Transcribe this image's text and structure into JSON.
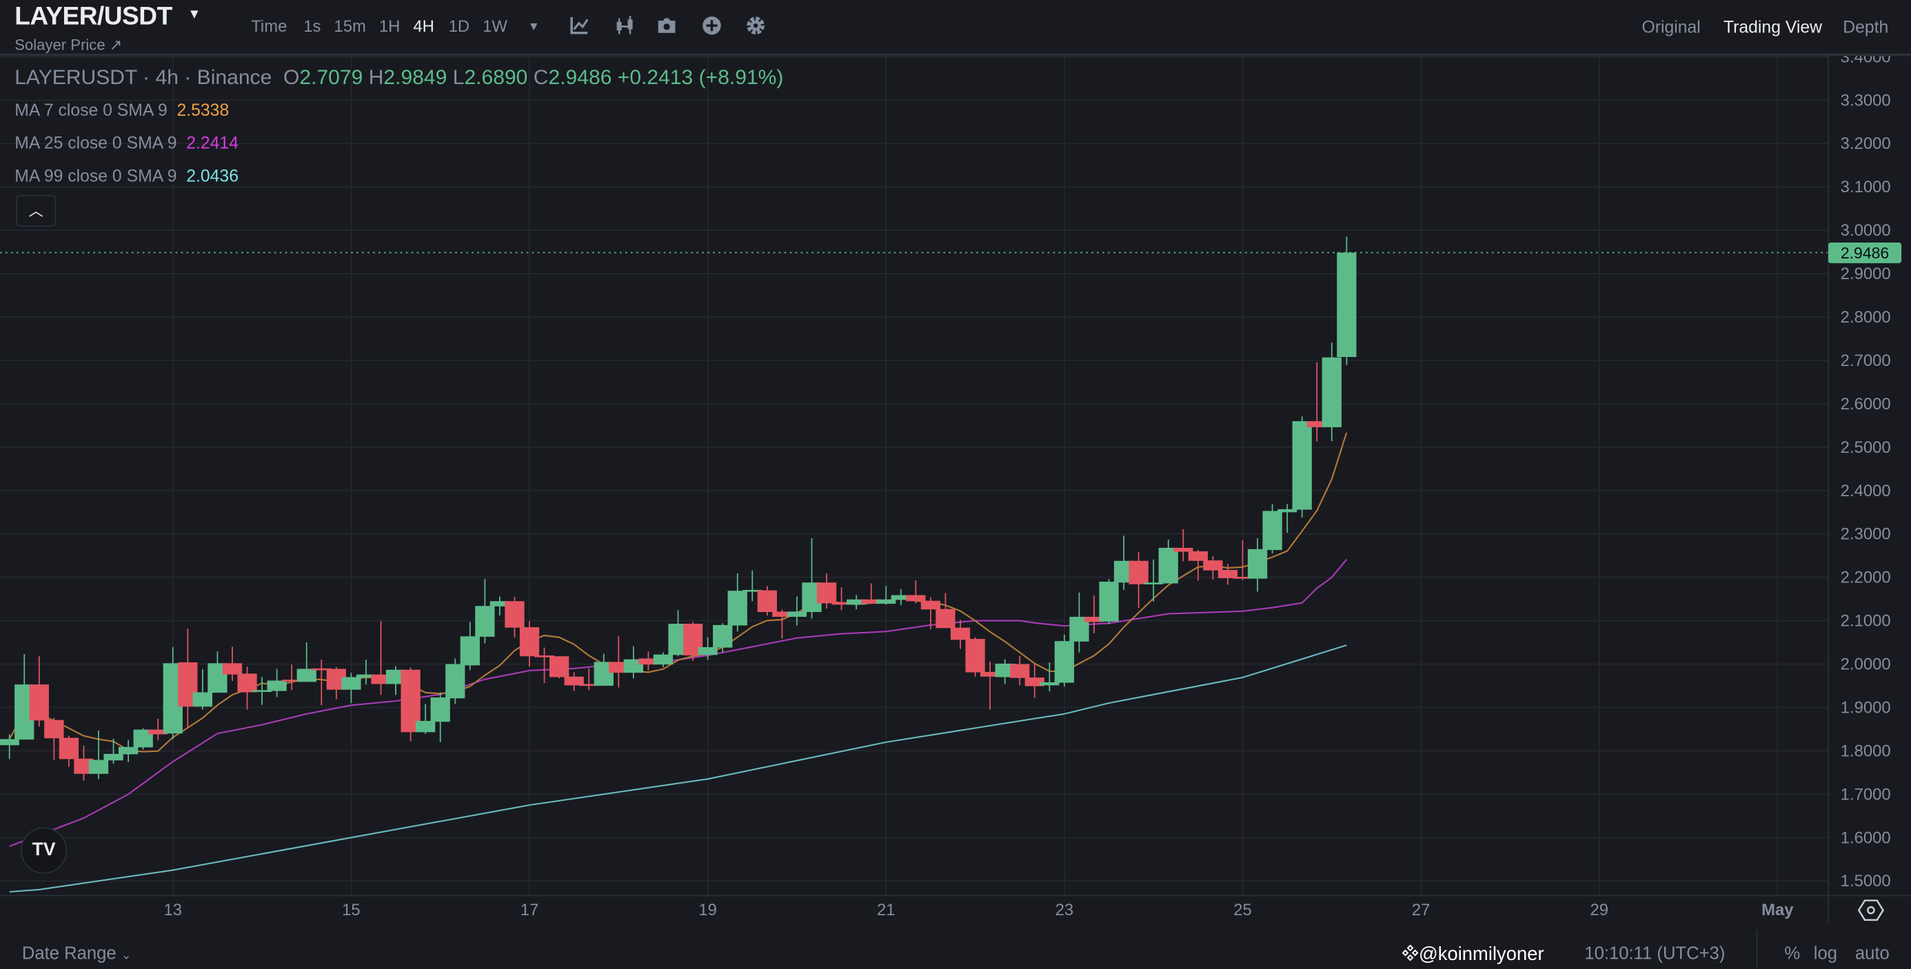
{
  "header": {
    "title": "LAYER/USDT",
    "subtitle": "Solayer Price ↗",
    "intervals": [
      {
        "label": "Time",
        "active": false
      },
      {
        "label": "1s",
        "active": false
      },
      {
        "label": "15m",
        "active": false
      },
      {
        "label": "1H",
        "active": false
      },
      {
        "label": "4H",
        "active": true
      },
      {
        "label": "1D",
        "active": false
      },
      {
        "label": "1W",
        "active": false
      }
    ],
    "tools": [
      "more-intervals-dropdown-icon",
      "indicators-icon",
      "candlestick-icon",
      "camera-icon",
      "plus-circle-icon",
      "gear-icon"
    ],
    "views": [
      {
        "label": "Original",
        "active": false
      },
      {
        "label": "Trading View",
        "active": true
      },
      {
        "label": "Depth",
        "active": false
      }
    ]
  },
  "legend": {
    "symbol": "LAYERUSDT · 4h · Binance",
    "open_label": "O",
    "open": "2.7079",
    "high_label": "H",
    "high": "2.9849",
    "low_label": "L",
    "low": "2.6890",
    "close_label": "C",
    "close": "2.9486",
    "change": "+0.2413 (+8.91%)",
    "ma": [
      {
        "label": "MA 7 close 0 SMA 9",
        "value": "2.5338",
        "color": "#f0a040",
        "line_color": "#b37a38"
      },
      {
        "label": "MA 25 close 0 SMA 9",
        "value": "2.2414",
        "color": "#d63ee0",
        "line_color": "#a93bb5"
      },
      {
        "label": "MA 99 close 0 SMA 9",
        "value": "2.0436",
        "color": "#7fe3e3",
        "line_color": "#6ab9bf"
      }
    ],
    "collapse_icon": "chevron-up-icon"
  },
  "colors": {
    "up": "#5dbb8a",
    "down": "#e45561",
    "grid": "#24272d",
    "background": "#181a20"
  },
  "chart_data": {
    "type": "candlestick",
    "interval": "4h",
    "y_range": [
      1.47,
      3.41
    ],
    "grid": true,
    "last_price": "2.9486",
    "price_ticks": [
      "1.5000",
      "1.6000",
      "1.7000",
      "1.8000",
      "1.9000",
      "2.0000",
      "2.1000",
      "2.2000",
      "2.3000",
      "2.4000",
      "2.5000",
      "2.6000",
      "2.7000",
      "2.8000",
      "2.9000",
      "3.0000",
      "3.1000",
      "3.2000",
      "3.3000",
      "3.4000"
    ],
    "time_ticks": [
      {
        "label": "13",
        "t": "04-13 00:00"
      },
      {
        "label": "15",
        "t": "04-15 00:00"
      },
      {
        "label": "17",
        "t": "04-17 00:00"
      },
      {
        "label": "19",
        "t": "04-19 00:00"
      },
      {
        "label": "21",
        "t": "04-21 00:00"
      },
      {
        "label": "23",
        "t": "04-23 00:00"
      },
      {
        "label": "25",
        "t": "04-25 00:00"
      },
      {
        "label": "27",
        "t": "04-27 00:00"
      },
      {
        "label": "29",
        "t": "04-29 00:00"
      },
      {
        "label": "May",
        "t": "05-01 00:00"
      }
    ],
    "candle_fields": [
      "t",
      "open",
      "high",
      "low",
      "close"
    ],
    "candles": [
      [
        "04-11 04:00",
        1.813,
        1.838,
        1.781,
        1.827
      ],
      [
        "04-11 08:00",
        1.826,
        2.023,
        1.826,
        1.953
      ],
      [
        "04-11 12:00",
        1.953,
        2.018,
        1.856,
        1.87
      ],
      [
        "04-11 16:00",
        1.871,
        1.876,
        1.779,
        1.829
      ],
      [
        "04-11 20:00",
        1.83,
        1.835,
        1.763,
        1.781
      ],
      [
        "04-12 00:00",
        1.782,
        1.812,
        1.731,
        1.747
      ],
      [
        "04-12 04:00",
        1.747,
        1.847,
        1.735,
        1.779
      ],
      [
        "04-12 08:00",
        1.778,
        1.828,
        1.77,
        1.793
      ],
      [
        "04-12 12:00",
        1.792,
        1.825,
        1.774,
        1.809
      ],
      [
        "04-12 16:00",
        1.808,
        1.852,
        1.803,
        1.849
      ],
      [
        "04-12 20:00",
        1.849,
        1.874,
        1.824,
        1.838
      ],
      [
        "04-13 00:00",
        1.84,
        2.039,
        1.827,
        2.002
      ],
      [
        "04-13 04:00",
        2.004,
        2.082,
        1.854,
        1.902
      ],
      [
        "04-13 08:00",
        1.902,
        1.988,
        1.895,
        1.935
      ],
      [
        "04-13 12:00",
        1.934,
        2.029,
        1.934,
        2.002
      ],
      [
        "04-13 16:00",
        2.002,
        2.04,
        1.961,
        1.976
      ],
      [
        "04-13 20:00",
        1.978,
        1.994,
        1.895,
        1.935
      ],
      [
        "04-14 00:00",
        1.937,
        1.97,
        1.906,
        1.94
      ],
      [
        "04-14 04:00",
        1.938,
        1.989,
        1.924,
        1.962
      ],
      [
        "04-14 08:00",
        1.964,
        1.999,
        1.94,
        1.961
      ],
      [
        "04-14 12:00",
        1.959,
        2.05,
        1.959,
        1.989
      ],
      [
        "04-14 16:00",
        1.99,
        2.01,
        1.905,
        1.987
      ],
      [
        "04-14 20:00",
        1.989,
        1.993,
        1.919,
        1.941
      ],
      [
        "04-15 00:00",
        1.941,
        1.98,
        1.91,
        1.97
      ],
      [
        "04-15 04:00",
        1.969,
        2.01,
        1.953,
        1.976
      ],
      [
        "04-15 08:00",
        1.976,
        2.099,
        1.929,
        1.954
      ],
      [
        "04-15 12:00",
        1.954,
        1.995,
        1.929,
        1.987
      ],
      [
        "04-15 16:00",
        1.987,
        1.992,
        1.822,
        1.843
      ],
      [
        "04-15 20:00",
        1.843,
        1.908,
        1.839,
        1.869
      ],
      [
        "04-16 00:00",
        1.867,
        1.935,
        1.82,
        1.923
      ],
      [
        "04-16 04:00",
        1.921,
        2.013,
        1.908,
        2.0
      ],
      [
        "04-16 08:00",
        1.997,
        2.097,
        1.986,
        2.064
      ],
      [
        "04-16 12:00",
        2.063,
        2.196,
        2.048,
        2.134
      ],
      [
        "04-16 16:00",
        2.133,
        2.156,
        2.112,
        2.145
      ],
      [
        "04-16 20:00",
        2.145,
        2.155,
        2.061,
        2.084
      ],
      [
        "04-17 00:00",
        2.085,
        2.099,
        1.994,
        2.018
      ],
      [
        "04-17 04:00",
        2.02,
        2.038,
        1.956,
        2.017
      ],
      [
        "04-17 08:00",
        2.018,
        2.018,
        1.967,
        1.97
      ],
      [
        "04-17 12:00",
        1.971,
        1.981,
        1.938,
        1.951
      ],
      [
        "04-17 16:00",
        1.954,
        1.99,
        1.94,
        1.952
      ],
      [
        "04-17 20:00",
        1.95,
        2.024,
        1.95,
        2.005
      ],
      [
        "04-18 00:00",
        2.005,
        2.064,
        1.946,
        1.98
      ],
      [
        "04-18 04:00",
        1.98,
        2.041,
        1.967,
        2.011
      ],
      [
        "04-18 08:00",
        2.013,
        2.029,
        1.985,
        1.999
      ],
      [
        "04-18 12:00",
        1.999,
        2.027,
        1.993,
        2.022
      ],
      [
        "04-18 16:00",
        2.021,
        2.124,
        2.018,
        2.093
      ],
      [
        "04-18 20:00",
        2.093,
        2.097,
        2.008,
        2.02
      ],
      [
        "04-19 00:00",
        2.021,
        2.062,
        2.01,
        2.039
      ],
      [
        "04-19 04:00",
        2.038,
        2.094,
        2.027,
        2.09
      ],
      [
        "04-19 08:00",
        2.089,
        2.209,
        2.075,
        2.169
      ],
      [
        "04-19 12:00",
        2.168,
        2.216,
        2.145,
        2.171
      ],
      [
        "04-19 16:00",
        2.17,
        2.18,
        2.112,
        2.12
      ],
      [
        "04-19 20:00",
        2.121,
        2.126,
        2.059,
        2.109
      ],
      [
        "04-20 00:00",
        2.109,
        2.156,
        2.089,
        2.121
      ],
      [
        "04-20 04:00",
        2.12,
        2.29,
        2.105,
        2.188
      ],
      [
        "04-20 08:00",
        2.188,
        2.209,
        2.128,
        2.14
      ],
      [
        "04-20 12:00",
        2.143,
        2.177,
        2.124,
        2.137
      ],
      [
        "04-20 16:00",
        2.137,
        2.159,
        2.126,
        2.149
      ],
      [
        "04-20 20:00",
        2.149,
        2.186,
        2.139,
        2.139
      ],
      [
        "04-21 00:00",
        2.139,
        2.18,
        2.137,
        2.149
      ],
      [
        "04-21 04:00",
        2.148,
        2.173,
        2.136,
        2.159
      ],
      [
        "04-21 08:00",
        2.159,
        2.193,
        2.14,
        2.145
      ],
      [
        "04-21 12:00",
        2.146,
        2.154,
        2.08,
        2.126
      ],
      [
        "04-21 16:00",
        2.127,
        2.164,
        2.083,
        2.083
      ],
      [
        "04-21 20:00",
        2.084,
        2.102,
        2.035,
        2.056
      ],
      [
        "04-22 00:00",
        2.058,
        2.062,
        1.971,
        1.981
      ],
      [
        "04-22 04:00",
        1.982,
        2.006,
        1.895,
        1.971
      ],
      [
        "04-22 08:00",
        1.97,
        2.011,
        1.954,
        2.001
      ],
      [
        "04-22 12:00",
        2.0,
        2.019,
        1.951,
        1.968
      ],
      [
        "04-22 16:00",
        1.969,
        2.003,
        1.922,
        1.949
      ],
      [
        "04-22 20:00",
        1.951,
        2.004,
        1.937,
        1.958
      ],
      [
        "04-23 00:00",
        1.957,
        2.068,
        1.948,
        2.053
      ],
      [
        "04-23 04:00",
        2.052,
        2.165,
        2.027,
        2.109
      ],
      [
        "04-23 08:00",
        2.109,
        2.158,
        2.071,
        2.097
      ],
      [
        "04-23 12:00",
        2.098,
        2.196,
        2.092,
        2.19
      ],
      [
        "04-23 16:00",
        2.188,
        2.296,
        2.171,
        2.238
      ],
      [
        "04-23 20:00",
        2.238,
        2.258,
        2.129,
        2.184
      ],
      [
        "04-24 00:00",
        2.186,
        2.241,
        2.144,
        2.188
      ],
      [
        "04-24 04:00",
        2.186,
        2.287,
        2.186,
        2.268
      ],
      [
        "04-24 08:00",
        2.268,
        2.311,
        2.237,
        2.259
      ],
      [
        "04-24 12:00",
        2.26,
        2.263,
        2.192,
        2.238
      ],
      [
        "04-24 16:00",
        2.239,
        2.249,
        2.195,
        2.216
      ],
      [
        "04-24 20:00",
        2.217,
        2.231,
        2.183,
        2.198
      ],
      [
        "04-25 00:00",
        2.201,
        2.285,
        2.194,
        2.198
      ],
      [
        "04-25 04:00",
        2.197,
        2.29,
        2.167,
        2.265
      ],
      [
        "04-25 08:00",
        2.263,
        2.369,
        2.255,
        2.353
      ],
      [
        "04-25 12:00",
        2.35,
        2.369,
        2.303,
        2.357
      ],
      [
        "04-25 16:00",
        2.356,
        2.571,
        2.338,
        2.56
      ],
      [
        "04-25 20:00",
        2.56,
        2.696,
        2.513,
        2.546
      ],
      [
        "04-26 00:00",
        2.546,
        2.741,
        2.514,
        2.707
      ],
      [
        "04-26 04:00",
        2.7079,
        2.9849,
        2.689,
        2.9486
      ]
    ],
    "ma25": [
      [
        "04-11 04:00",
        1.58
      ],
      [
        "04-12 00:00",
        1.645
      ],
      [
        "04-12 12:00",
        1.7
      ],
      [
        "04-13 00:00",
        1.775
      ],
      [
        "04-13 12:00",
        1.84
      ],
      [
        "04-14 00:00",
        1.86
      ],
      [
        "04-14 12:00",
        1.885
      ],
      [
        "04-15 00:00",
        1.905
      ],
      [
        "04-15 12:00",
        1.915
      ],
      [
        "04-16 00:00",
        1.93
      ],
      [
        "04-16 12:00",
        1.965
      ],
      [
        "04-17 00:00",
        1.985
      ],
      [
        "04-17 12:00",
        1.99
      ],
      [
        "04-18 00:00",
        2.0
      ],
      [
        "04-18 12:00",
        2.005
      ],
      [
        "04-19 00:00",
        2.02
      ],
      [
        "04-19 12:00",
        2.04
      ],
      [
        "04-20 00:00",
        2.06
      ],
      [
        "04-20 12:00",
        2.07
      ],
      [
        "04-21 00:00",
        2.075
      ],
      [
        "04-21 12:00",
        2.09
      ],
      [
        "04-22 00:00",
        2.1
      ],
      [
        "04-22 12:00",
        2.1
      ],
      [
        "04-22 16:00",
        2.095
      ],
      [
        "04-23 00:00",
        2.088
      ],
      [
        "04-23 12:00",
        2.094
      ],
      [
        "04-24 04:00",
        2.116
      ],
      [
        "04-25 00:00",
        2.122
      ],
      [
        "04-25 08:00",
        2.13
      ],
      [
        "04-25 16:00",
        2.141
      ],
      [
        "04-25 20:00",
        2.175
      ],
      [
        "04-26 00:00",
        2.2
      ],
      [
        "04-26 04:00",
        2.2414
      ]
    ],
    "ma99": [
      [
        "04-11 04:00",
        1.475
      ],
      [
        "04-11 12:00",
        1.48
      ],
      [
        "04-13 00:00",
        1.525
      ],
      [
        "04-15 00:00",
        1.6
      ],
      [
        "04-17 00:00",
        1.675
      ],
      [
        "04-19 00:00",
        1.735
      ],
      [
        "04-21 00:00",
        1.82
      ],
      [
        "04-23 00:00",
        1.885
      ],
      [
        "04-23 12:00",
        1.91
      ],
      [
        "04-25 00:00",
        1.969
      ],
      [
        "04-26 04:00",
        2.0436
      ]
    ]
  },
  "footer": {
    "date_range": "Date Range",
    "clock": "10:10:11 (UTC+3)",
    "options": [
      "%",
      "log",
      "auto"
    ],
    "watermark": "@koinmilyoner"
  }
}
